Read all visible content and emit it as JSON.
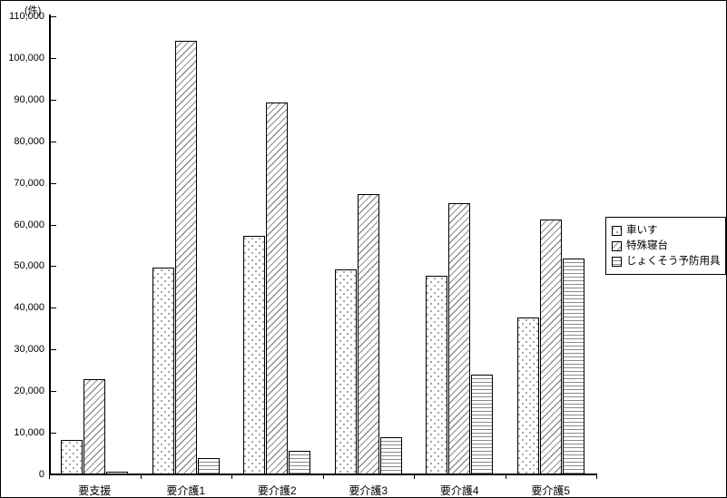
{
  "unit": "(件)",
  "chart_data": {
    "type": "bar",
    "title": "",
    "xlabel": "",
    "ylabel": "(件)",
    "categories": [
      "要支援",
      "要介護1",
      "要介護2",
      "要介護3",
      "要介護4",
      "要介護5"
    ],
    "series": [
      {
        "name": "車いす",
        "pattern": "pat-dots",
        "values": [
          8300,
          49600,
          57300,
          49200,
          47700,
          37600
        ]
      },
      {
        "name": "特殊寝台",
        "pattern": "pat-diag",
        "values": [
          22800,
          104200,
          89400,
          67400,
          65100,
          61100
        ]
      },
      {
        "name": "じょくそう予防用具",
        "pattern": "pat-hlines",
        "values": [
          700,
          3900,
          5600,
          8900,
          24000,
          51900
        ]
      }
    ],
    "ylim": [
      0,
      110000
    ],
    "ytick_interval": 10000,
    "yticks": [
      "0",
      "10,000",
      "20,000",
      "30,000",
      "40,000",
      "50,000",
      "60,000",
      "70,000",
      "80,000",
      "90,000",
      "100,000",
      "110,000"
    ],
    "grid": false,
    "legend_position": "right",
    "colors": {
      "axis": "#000000",
      "pattern_gray": "#8f8f8f",
      "background": "#ffffff"
    }
  }
}
